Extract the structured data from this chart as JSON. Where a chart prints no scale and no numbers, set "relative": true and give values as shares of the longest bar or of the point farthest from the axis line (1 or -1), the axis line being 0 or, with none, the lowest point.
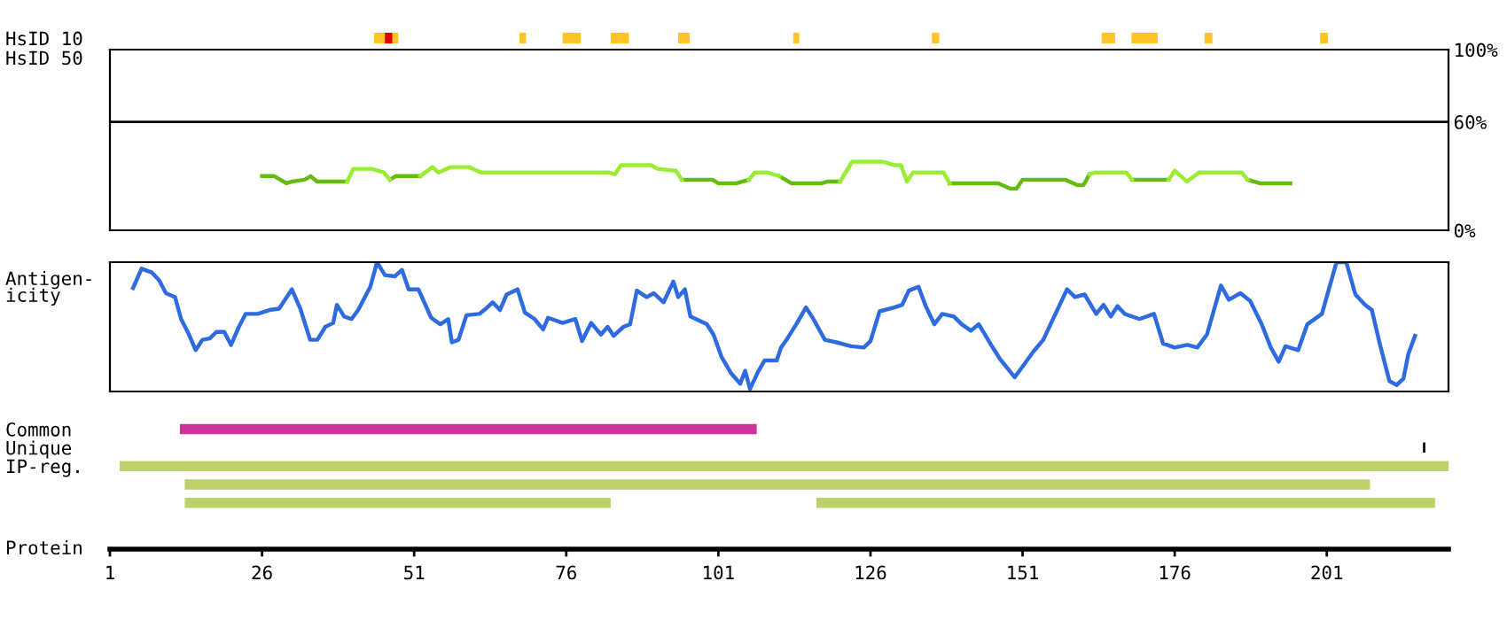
{
  "chart_data": [
    {
      "type": "bar",
      "orientation": "horizontal",
      "categories": [
        "HsID 10",
        "HsID 50"
      ],
      "xlim": [
        1,
        221
      ],
      "tick_labels": "y",
      "series": [
        {
          "color": "#ffc425",
          "base": [
            44.4,
            null
          ],
          "values": [
            4.0,
            null
          ]
        },
        {
          "color": "#dd0000",
          "base": [
            46.2,
            null
          ],
          "values": [
            1.2,
            null
          ]
        },
        {
          "color": "#ffc425",
          "base": [
            68.3,
            null
          ],
          "values": [
            1.1,
            null
          ]
        },
        {
          "color": "#ffc425",
          "base": [
            75.4,
            null
          ],
          "values": [
            3.0,
            null
          ]
        },
        {
          "color": "#ffc425",
          "base": [
            83.3,
            null
          ],
          "values": [
            3.0,
            null
          ]
        },
        {
          "color": "#ffc425",
          "base": [
            94.4,
            null
          ],
          "values": [
            1.9,
            null
          ]
        },
        {
          "color": "#ffc425",
          "base": [
            113.3,
            null
          ],
          "values": [
            1.0,
            null
          ]
        },
        {
          "color": "#ffc425",
          "base": [
            136.1,
            null
          ],
          "values": [
            1.2,
            null
          ]
        },
        {
          "color": "#ffc425",
          "base": [
            164.0,
            null
          ],
          "values": [
            2.2,
            null
          ]
        },
        {
          "color": "#ffc425",
          "base": [
            168.9,
            null
          ],
          "values": [
            4.3,
            null
          ]
        },
        {
          "color": "#ffc425",
          "base": [
            180.9,
            null
          ],
          "values": [
            1.3,
            null
          ]
        },
        {
          "color": "#ffc425",
          "base": [
            199.9,
            null
          ],
          "values": [
            1.3,
            null
          ]
        }
      ]
    },
    {
      "type": "line",
      "xlim": [
        1,
        221
      ],
      "ylim": [
        0,
        100
      ],
      "yticks": [
        {
          "value": 0,
          "label": "0%"
        },
        {
          "value": 60,
          "label": "60%"
        },
        {
          "value": 100,
          "label": "100%"
        }
      ],
      "tick_labels": "y",
      "ref_lines": [
        {
          "axis": "y",
          "value": 60,
          "color": "#000000"
        }
      ],
      "series": [
        {
          "color": "#66bb11",
          "x": [
            26,
            28,
            30,
            31,
            33,
            34,
            35,
            40,
            null,
            47,
            48,
            52,
            null,
            95,
            100,
            101,
            104,
            105,
            106,
            null,
            111,
            113,
            118,
            119,
            121,
            null,
            139,
            147,
            149,
            150,
            151,
            158,
            160,
            161,
            162,
            null,
            169,
            175,
            null,
            188,
            190,
            195
          ],
          "values": [
            30,
            30,
            26,
            27,
            28,
            30,
            27,
            27,
            null,
            28,
            30,
            30,
            null,
            28,
            28,
            26,
            26,
            27,
            28,
            null,
            30,
            26,
            26,
            27,
            27,
            null,
            26,
            26,
            23,
            23,
            28,
            28,
            25,
            25,
            31,
            null,
            28,
            28,
            null,
            28,
            26,
            26
          ]
        },
        {
          "color": "#99ee33",
          "x": [
            40,
            41,
            44,
            46,
            47,
            null,
            52,
            54,
            55,
            57,
            60,
            62,
            83,
            84,
            85,
            90,
            91,
            94,
            95,
            null,
            106,
            107,
            109,
            111,
            null,
            121,
            123,
            128,
            130,
            131,
            132,
            133,
            138,
            139,
            null,
            162,
            163,
            168,
            169,
            null,
            175,
            176,
            178,
            180,
            187,
            188
          ],
          "values": [
            27,
            34,
            34,
            32,
            28,
            null,
            30,
            35,
            32,
            35,
            35,
            32,
            32,
            31,
            36,
            36,
            34,
            33,
            28,
            null,
            28,
            32,
            32,
            30,
            null,
            27,
            38,
            38,
            36,
            36,
            27,
            32,
            32,
            26,
            null,
            31,
            32,
            32,
            28,
            null,
            28,
            33,
            27,
            32,
            32,
            28
          ]
        }
      ]
    },
    {
      "type": "line",
      "ylabel": "Antigen-\nicity",
      "relative": true,
      "xlim": [
        1,
        221
      ],
      "tick_labels": false,
      "series": [
        {
          "color": "#2e6ae0",
          "x": [
            4.8,
            6.2,
            7.9,
            9.1,
            10.2,
            11.7,
            12.7,
            14.0,
            15.1,
            16.2,
            17.4,
            18.5,
            19.8,
            20.9,
            22.2,
            23.3,
            25.3,
            27.2,
            28.8,
            30.9,
            32.3,
            33.9,
            35.1,
            36.4,
            37.7,
            38.3,
            39.5,
            40.7,
            41.8,
            43.8,
            44.9,
            46.2,
            47.8,
            49.0,
            50.1,
            51.7,
            53.8,
            55.3,
            56.6,
            57.2,
            58.3,
            59.6,
            61.7,
            62.8,
            63.9,
            65.1,
            66.2,
            68.0,
            69.2,
            70.8,
            72.2,
            73.0,
            75.4,
            77.5,
            78.6,
            80.1,
            81.7,
            82.8,
            83.8,
            85.4,
            86.5,
            87.6,
            89.2,
            90.4,
            92.0,
            93.6,
            94.4,
            95.5,
            96.4,
            99.1,
            100.2,
            101.5,
            103.1,
            104.6,
            105.4,
            106.2,
            107.5,
            108.6,
            110.6,
            111.3,
            112.2,
            113.8,
            115.4,
            116.5,
            118.5,
            120.4,
            122.8,
            124.9,
            126.0,
            127.5,
            129.9,
            131.2,
            132.3,
            133.9,
            135.0,
            136.5,
            137.8,
            139.7,
            141.0,
            142.5,
            143.8,
            145.7,
            147.3,
            149.7,
            150.8,
            152.8,
            154.4,
            156.0,
            158.3,
            159.6,
            161.2,
            163.1,
            164.3,
            165.5,
            166.6,
            167.8,
            170.2,
            172.6,
            174.1,
            176.0,
            178.1,
            179.7,
            181.3,
            183.6,
            184.9,
            186.8,
            188.4,
            190.3,
            191.8,
            193.1,
            194.2,
            196.3,
            197.8,
            200.2,
            202.6,
            204.2,
            205.7,
            207.3,
            208.4,
            209.7,
            211.3,
            212.5,
            213.6,
            214.4,
            215.5
          ],
          "values": [
            0.8,
            0.95,
            0.92,
            0.86,
            0.76,
            0.73,
            0.56,
            0.44,
            0.32,
            0.4,
            0.41,
            0.46,
            0.46,
            0.36,
            0.5,
            0.6,
            0.6,
            0.63,
            0.64,
            0.79,
            0.64,
            0.4,
            0.4,
            0.5,
            0.53,
            0.67,
            0.58,
            0.56,
            0.63,
            0.81,
            1.0,
            0.9,
            0.89,
            0.94,
            0.79,
            0.79,
            0.57,
            0.52,
            0.56,
            0.38,
            0.4,
            0.59,
            0.6,
            0.64,
            0.69,
            0.63,
            0.75,
            0.79,
            0.61,
            0.56,
            0.48,
            0.57,
            0.53,
            0.56,
            0.39,
            0.53,
            0.44,
            0.5,
            0.43,
            0.5,
            0.52,
            0.78,
            0.73,
            0.76,
            0.69,
            0.85,
            0.73,
            0.79,
            0.58,
            0.52,
            0.44,
            0.27,
            0.14,
            0.06,
            0.16,
            0.02,
            0.15,
            0.24,
            0.24,
            0.34,
            0.4,
            0.52,
            0.65,
            0.57,
            0.4,
            0.38,
            0.35,
            0.34,
            0.39,
            0.62,
            0.65,
            0.67,
            0.78,
            0.81,
            0.67,
            0.52,
            0.6,
            0.58,
            0.52,
            0.47,
            0.52,
            0.37,
            0.25,
            0.11,
            0.18,
            0.31,
            0.4,
            0.56,
            0.79,
            0.73,
            0.75,
            0.6,
            0.67,
            0.58,
            0.66,
            0.6,
            0.56,
            0.6,
            0.37,
            0.34,
            0.36,
            0.34,
            0.44,
            0.82,
            0.71,
            0.76,
            0.7,
            0.52,
            0.34,
            0.23,
            0.35,
            0.32,
            0.52,
            0.6,
            1.0,
            1.0,
            0.75,
            0.67,
            0.63,
            0.37,
            0.08,
            0.05,
            0.1,
            0.29,
            0.43
          ]
        }
      ]
    },
    {
      "type": "bar",
      "orientation": "horizontal",
      "categories": [
        "Common",
        "Unique",
        "IP-reg.",
        null,
        null
      ],
      "xlabel": "Protein",
      "xlim": [
        1,
        221
      ],
      "xticks": [
        1,
        26,
        51,
        76,
        101,
        126,
        151,
        176,
        201
      ],
      "tick_labels": "xy",
      "series": [
        {
          "color": "#cc3399",
          "base": [
            12.5,
            null,
            null,
            null,
            null
          ],
          "values": [
            94.8,
            null,
            null,
            null,
            null
          ]
        },
        {
          "color": "#000000",
          "base": [
            null,
            216.8,
            null,
            null,
            null
          ],
          "values": [
            null,
            0.4,
            null,
            null,
            null
          ]
        },
        {
          "color": "#bbd26b",
          "base": [
            null,
            null,
            2.6,
            13.3,
            13.3
          ],
          "values": [
            null,
            null,
            218.5,
            194.8,
            70.0
          ]
        },
        {
          "color": "#bbd26b",
          "base": [
            null,
            null,
            null,
            null,
            117.1
          ],
          "values": [
            null,
            null,
            null,
            null,
            101.7
          ]
        }
      ]
    }
  ]
}
